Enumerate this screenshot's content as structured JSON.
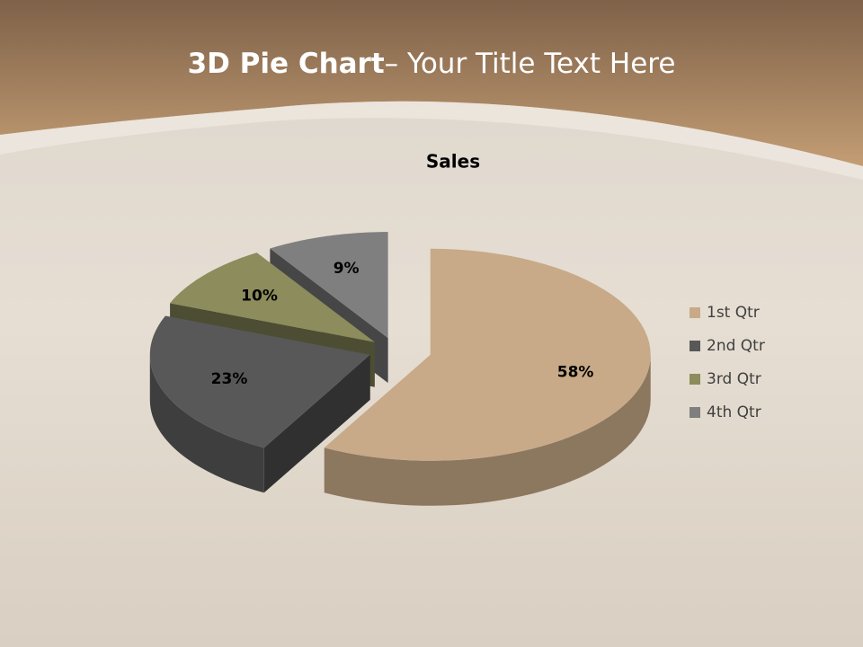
{
  "slide": {
    "title_bold": "3D Pie Chart",
    "title_rest": "– Your Title Text Here"
  },
  "chart_data": {
    "type": "pie3d",
    "title": "Sales",
    "categories": [
      "1st Qtr",
      "2nd Qtr",
      "3rd Qtr",
      "4th Qtr"
    ],
    "values": [
      58,
      23,
      10,
      9
    ],
    "value_labels": [
      "58%",
      "23%",
      "10%",
      "9%"
    ],
    "colors": [
      "#c8aa88",
      "#585858",
      "#8c8c5c",
      "#7f7f7f"
    ],
    "legend": "right"
  }
}
